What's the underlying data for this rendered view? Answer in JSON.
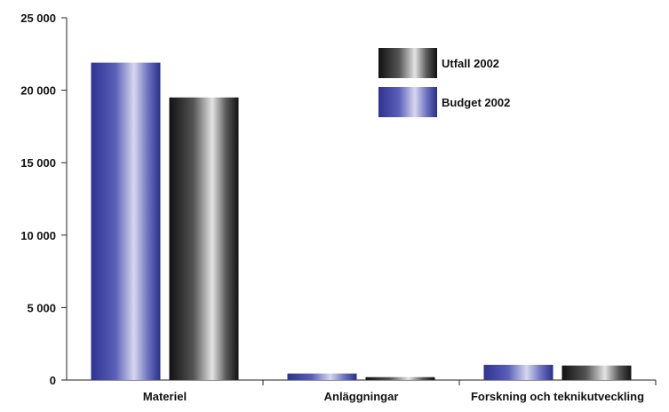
{
  "chart_data": {
    "type": "bar",
    "title": "",
    "xlabel": "",
    "ylabel": "",
    "categories": [
      "Materiel",
      "Anläggningar",
      "Forskning och teknikutveckling"
    ],
    "series": [
      {
        "name": "Budget 2002",
        "values": [
          21900,
          450,
          1050
        ],
        "color": "#3a3f9e"
      },
      {
        "name": "Utfall 2002",
        "values": [
          19500,
          200,
          1000
        ],
        "color": "#1a1a1a"
      }
    ],
    "ylim": [
      0,
      25000
    ],
    "yticks": [
      {
        "value": 0,
        "label": "0"
      },
      {
        "value": 5000,
        "label": "5 000"
      },
      {
        "value": 10000,
        "label": "10 000"
      },
      {
        "value": 15000,
        "label": "15 000"
      },
      {
        "value": 20000,
        "label": "20 000"
      },
      {
        "value": 25000,
        "label": "25 000"
      }
    ],
    "legend_order": [
      "Utfall 2002",
      "Budget 2002"
    ],
    "legend_position": "top-right",
    "grid": false
  }
}
